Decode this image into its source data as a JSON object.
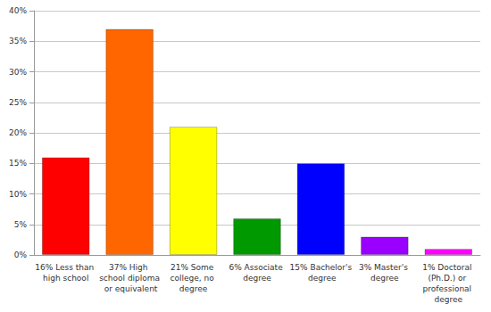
{
  "chart_data": {
    "type": "bar",
    "categories": [
      "16% Less than high school",
      "37% High school diploma or equivalent",
      "21% Some college, no degree",
      "6% Associate degree",
      "15% Bachelor's degree",
      "3% Master's degree",
      "1% Doctoral (Ph.D.) or professional degree"
    ],
    "values": [
      16,
      37,
      21,
      6,
      15,
      3,
      1
    ],
    "colors": [
      "#ff0000",
      "#ff6600",
      "#ffff00",
      "#009900",
      "#0000ff",
      "#9900ff",
      "#ff00ff"
    ],
    "ylim": [
      0,
      40
    ],
    "yticks": [
      {
        "value": 0,
        "label": "0%"
      },
      {
        "value": 5,
        "label": "5%"
      },
      {
        "value": 10,
        "label": "10%"
      },
      {
        "value": 15,
        "label": "15%"
      },
      {
        "value": 20,
        "label": "20%"
      },
      {
        "value": 25,
        "label": "25%"
      },
      {
        "value": 30,
        "label": "30%"
      },
      {
        "value": 35,
        "label": "35%"
      },
      {
        "value": 40,
        "label": "40%"
      }
    ],
    "grid": true
  }
}
